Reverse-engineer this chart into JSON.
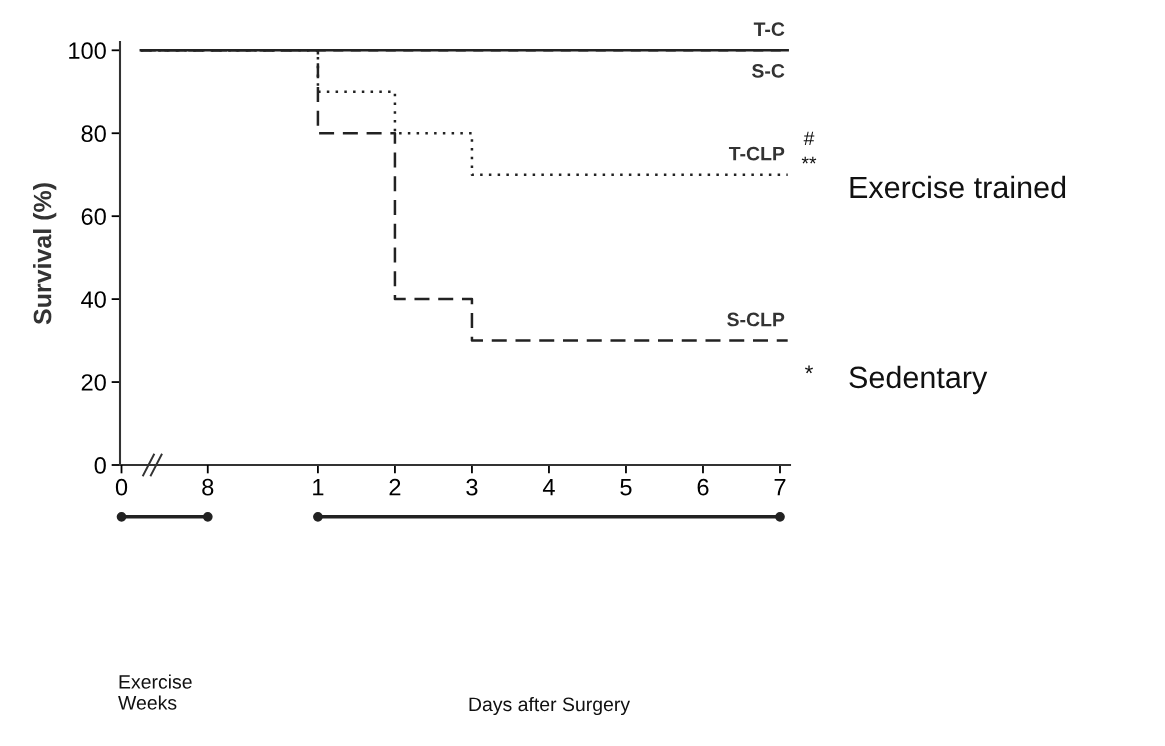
{
  "chart_data": {
    "type": "step",
    "ylabel": "Survival (%)",
    "xlim": [
      -1.57,
      7.13
    ],
    "ylim": [
      0,
      102
    ],
    "xticks": [
      1,
      2,
      3,
      4,
      5,
      6,
      7
    ],
    "x2lim": [
      -0.14,
      62
    ],
    "x2ticks": [
      0,
      8
    ],
    "yticks": [
      0,
      20,
      40,
      60,
      80,
      100
    ],
    "grid": false,
    "marker": "none",
    "series": [
      {
        "name": "T-C",
        "color": "#222222",
        "line_style": "solid",
        "x": [
          -1.3,
          7.1
        ],
        "values": [
          100,
          100
        ]
      },
      {
        "name": "S-C",
        "color": "#222222",
        "line_style": "dashed",
        "x": [
          -1.3,
          7.1
        ],
        "values": [
          100,
          100
        ]
      },
      {
        "name": "T-CLP",
        "color": "#222222",
        "line_style": "dotted",
        "x": [
          -1.3,
          1,
          2,
          3,
          7.1
        ],
        "values": [
          100,
          90,
          80,
          70,
          70
        ]
      },
      {
        "name": "S-CLP",
        "color": "#222222",
        "line_style": "dashed",
        "x": [
          -1.3,
          1,
          2,
          3,
          7.1
        ],
        "values": [
          100,
          80,
          40,
          30,
          30
        ]
      }
    ],
    "annotations": [
      "#",
      "**",
      "*",
      "Exercise trained",
      "Sedentary",
      "Exercise\nWeeks",
      "Days after Surgery"
    ]
  }
}
